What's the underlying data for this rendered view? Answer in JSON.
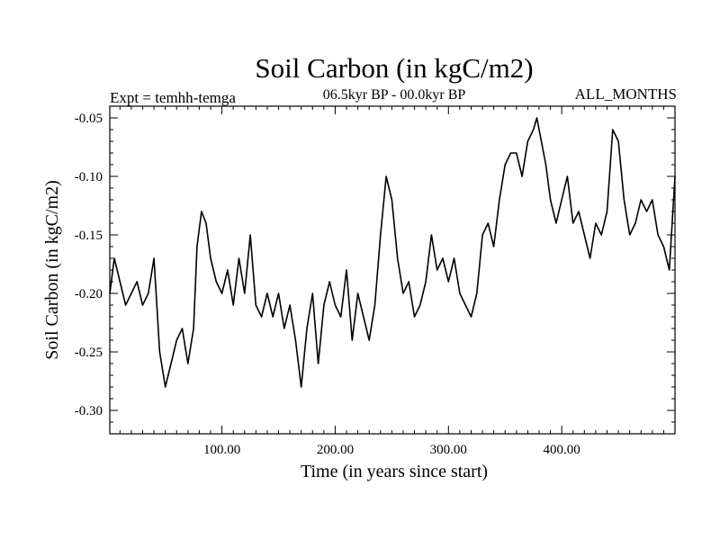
{
  "chart_data": {
    "type": "line",
    "title": "Soil Carbon (in kgC/m2)",
    "subtitle": "06.5kyr BP - 00.0kyr BP",
    "left_label": "Expt = temhh-temga",
    "right_label": "ALL_MONTHS",
    "xlabel": "Time (in years since start)",
    "ylabel": "Soil Carbon (in kgC/m2)",
    "xlim": [
      1,
      500
    ],
    "ylim": [
      -0.32,
      -0.04
    ],
    "x_ticks": [
      100,
      200,
      300,
      400
    ],
    "x_tick_labels": [
      "100.00",
      "200.00",
      "300.00",
      "400.00"
    ],
    "y_ticks": [
      -0.05,
      -0.1,
      -0.15,
      -0.2,
      -0.25,
      -0.3
    ],
    "y_tick_labels": [
      "-0.05",
      "-0.10",
      "-0.15",
      "-0.20",
      "-0.25",
      "-0.30"
    ],
    "grid": false,
    "series": [
      {
        "name": "Soil Carbon",
        "color": "#000000",
        "x": [
          1,
          5,
          10,
          15,
          20,
          25,
          30,
          35,
          40,
          45,
          50,
          55,
          60,
          65,
          70,
          75,
          78,
          82,
          86,
          90,
          95,
          100,
          105,
          110,
          115,
          120,
          125,
          130,
          135,
          140,
          145,
          150,
          155,
          160,
          165,
          170,
          175,
          180,
          185,
          190,
          195,
          200,
          205,
          210,
          215,
          220,
          225,
          230,
          235,
          240,
          245,
          250,
          255,
          260,
          265,
          270,
          275,
          280,
          285,
          290,
          295,
          300,
          305,
          310,
          315,
          320,
          325,
          330,
          335,
          340,
          345,
          350,
          355,
          360,
          365,
          370,
          375,
          378,
          382,
          386,
          390,
          395,
          400,
          405,
          410,
          415,
          420,
          425,
          430,
          435,
          440,
          445,
          450,
          455,
          460,
          465,
          470,
          475,
          480,
          485,
          490,
          495,
          500
        ],
        "values": [
          -0.2,
          -0.17,
          -0.19,
          -0.21,
          -0.2,
          -0.19,
          -0.21,
          -0.2,
          -0.17,
          -0.25,
          -0.28,
          -0.26,
          -0.24,
          -0.23,
          -0.26,
          -0.23,
          -0.16,
          -0.13,
          -0.14,
          -0.17,
          -0.19,
          -0.2,
          -0.18,
          -0.21,
          -0.17,
          -0.2,
          -0.15,
          -0.21,
          -0.22,
          -0.2,
          -0.22,
          -0.2,
          -0.23,
          -0.21,
          -0.24,
          -0.28,
          -0.23,
          -0.2,
          -0.26,
          -0.21,
          -0.19,
          -0.21,
          -0.22,
          -0.18,
          -0.24,
          -0.2,
          -0.22,
          -0.24,
          -0.21,
          -0.15,
          -0.1,
          -0.12,
          -0.17,
          -0.2,
          -0.19,
          -0.22,
          -0.21,
          -0.19,
          -0.15,
          -0.18,
          -0.17,
          -0.19,
          -0.17,
          -0.2,
          -0.21,
          -0.22,
          -0.2,
          -0.15,
          -0.14,
          -0.16,
          -0.12,
          -0.09,
          -0.08,
          -0.08,
          -0.1,
          -0.07,
          -0.06,
          -0.05,
          -0.07,
          -0.09,
          -0.12,
          -0.14,
          -0.12,
          -0.1,
          -0.14,
          -0.13,
          -0.15,
          -0.17,
          -0.14,
          -0.15,
          -0.13,
          -0.06,
          -0.07,
          -0.12,
          -0.15,
          -0.14,
          -0.12,
          -0.13,
          -0.12,
          -0.15,
          -0.16,
          -0.18,
          -0.1
        ]
      }
    ]
  }
}
